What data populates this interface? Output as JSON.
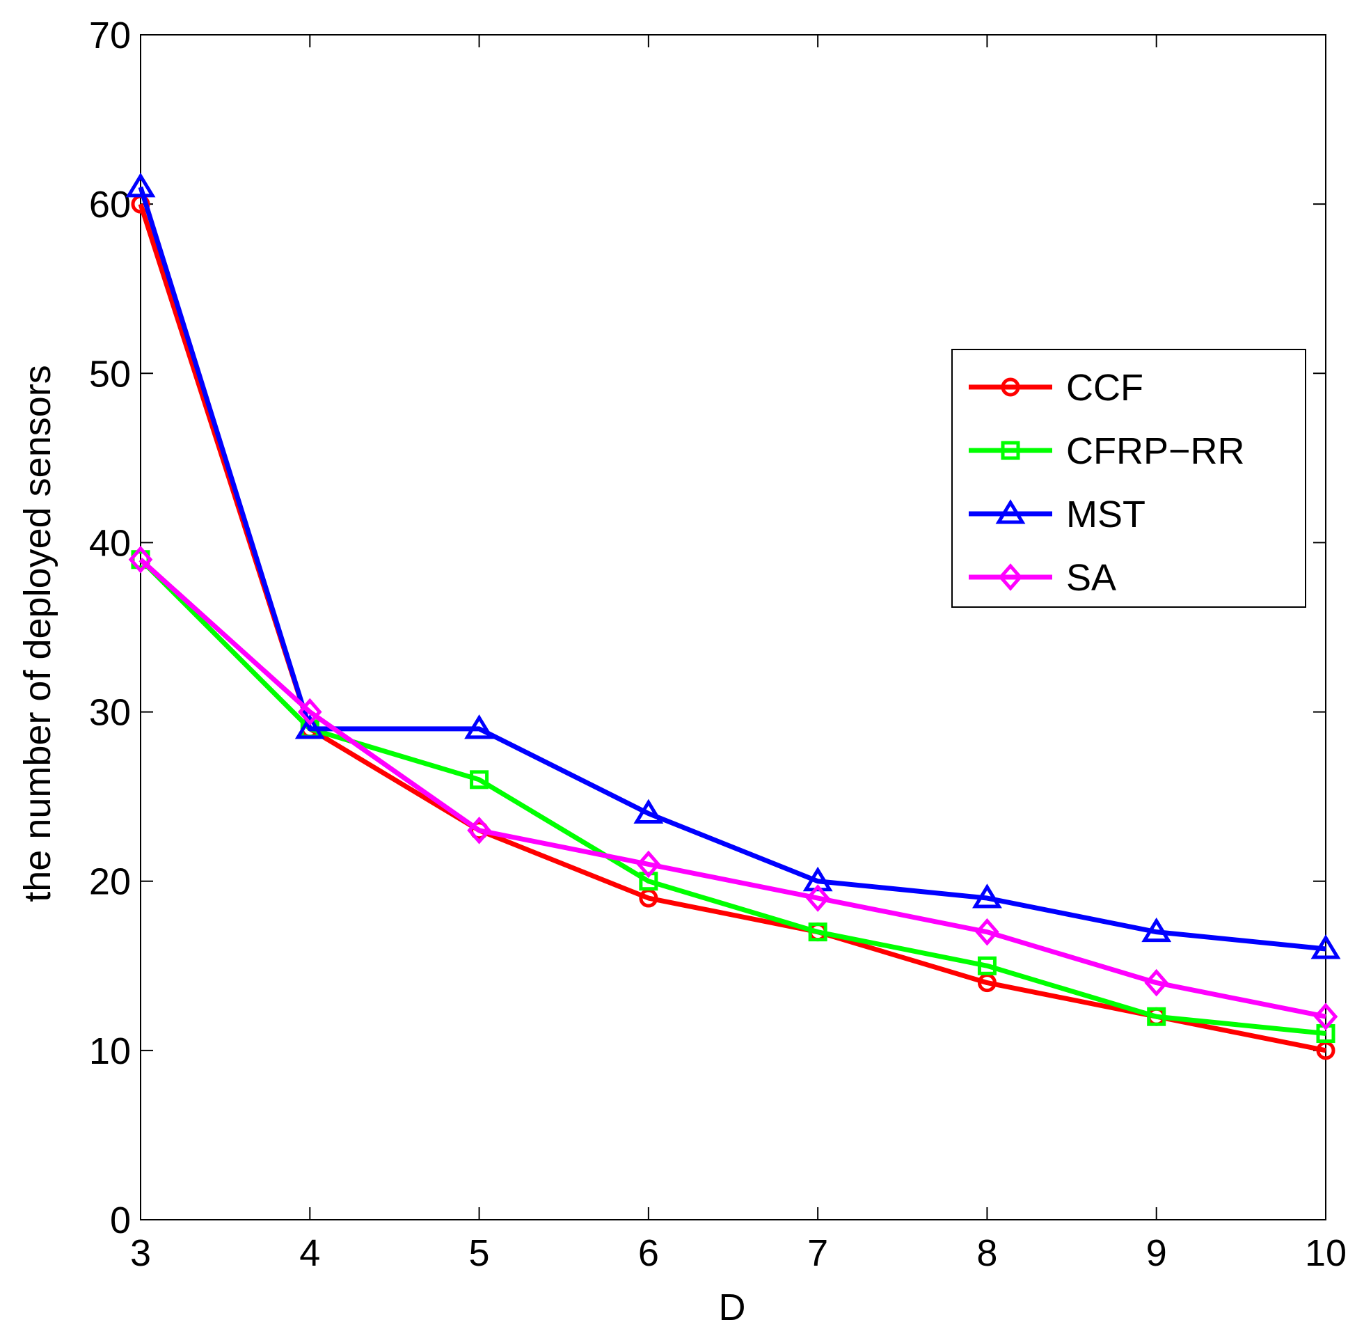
{
  "chart_data": {
    "type": "line",
    "title": "",
    "xlabel": "D",
    "ylabel": "the number of deployed sensors",
    "x": [
      3,
      4,
      5,
      6,
      7,
      8,
      9,
      10
    ],
    "xlim": [
      3,
      10
    ],
    "ylim": [
      0,
      70
    ],
    "xticks": [
      "3",
      "4",
      "5",
      "6",
      "7",
      "8",
      "9",
      "10"
    ],
    "yticks": [
      "0",
      "10",
      "20",
      "30",
      "40",
      "50",
      "60",
      "70"
    ],
    "grid": false,
    "legend_position": "center-right",
    "series": [
      {
        "name": "CCF",
        "color": "#ff0000",
        "marker": "circle",
        "values": [
          60,
          29,
          23,
          19,
          17,
          14,
          12,
          10
        ]
      },
      {
        "name": "CFRP−RR",
        "color": "#00ff00",
        "marker": "square",
        "values": [
          39,
          29,
          26,
          20,
          17,
          15,
          12,
          11
        ]
      },
      {
        "name": "MST",
        "color": "#0000ff",
        "marker": "triangle",
        "values": [
          61,
          29,
          29,
          24,
          20,
          19,
          17,
          16
        ]
      },
      {
        "name": "SA",
        "color": "#ff00ff",
        "marker": "diamond",
        "values": [
          39,
          30,
          23,
          21,
          19,
          17,
          14,
          12
        ]
      }
    ]
  }
}
